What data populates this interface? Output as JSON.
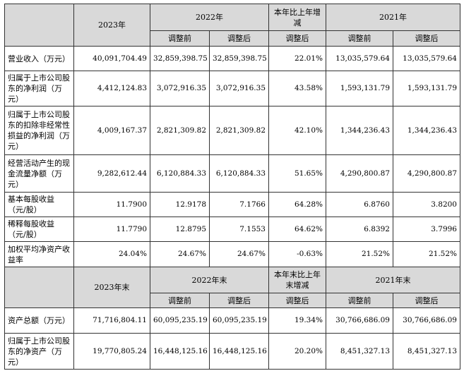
{
  "header1": {
    "col_2023": "2023年",
    "col_2022": "2022年",
    "col_change": "本年比上年增减",
    "col_2021": "2021年",
    "before": "调整前",
    "after": "调整后"
  },
  "rows1": [
    {
      "label": "营业收入（万元）",
      "v2023": "40,091,704.49",
      "v2022_before": "32,859,398.75",
      "v2022_after": "32,859,398.75",
      "change": "22.01%",
      "v2021_before": "13,035,579.64",
      "v2021_after": "13,035,579.64"
    },
    {
      "label": "归属于上市公司股东的净利润（万元）",
      "v2023": "4,412,124.83",
      "v2022_before": "3,072,916.35",
      "v2022_after": "3,072,916.35",
      "change": "43.58%",
      "v2021_before": "1,593,131.79",
      "v2021_after": "1,593,131.79"
    },
    {
      "label": "归属于上市公司股东的扣除非经常性损益的净利润（万元）",
      "v2023": "4,009,167.37",
      "v2022_before": "2,821,309.82",
      "v2022_after": "2,821,309.82",
      "change": "42.10%",
      "v2021_before": "1,344,236.43",
      "v2021_after": "1,344,236.43"
    },
    {
      "label": "经营活动产生的现金流量净额（万元）",
      "v2023": "9,282,612.44",
      "v2022_before": "6,120,884.33",
      "v2022_after": "6,120,884.33",
      "change": "51.65%",
      "v2021_before": "4,290,800.87",
      "v2021_after": "4,290,800.87"
    },
    {
      "label": "基本每股收益（元/股）",
      "v2023": "11.7900",
      "v2022_before": "12.9178",
      "v2022_after": "7.1766",
      "change": "64.28%",
      "v2021_before": "6.8760",
      "v2021_after": "3.8200"
    },
    {
      "label": "稀释每股收益（元/股）",
      "v2023": "11.7790",
      "v2022_before": "12.8795",
      "v2022_after": "7.1553",
      "change": "64.62%",
      "v2021_before": "6.8392",
      "v2021_after": "3.7996"
    },
    {
      "label": "加权平均净资产收益率",
      "v2023": "24.04%",
      "v2022_before": "24.67%",
      "v2022_after": "24.67%",
      "change": "-0.63%",
      "v2021_before": "21.52%",
      "v2021_after": "21.52%"
    }
  ],
  "header2": {
    "col_2023": "2023年末",
    "col_2022": "2022年末",
    "col_change": "本年末比上年末增减",
    "col_2021": "2021年末",
    "before": "调整前",
    "after": "调整后"
  },
  "rows2": [
    {
      "label": "资产总额（万元）",
      "v2023": "71,716,804.11",
      "v2022_before": "60,095,235.19",
      "v2022_after": "60,095,235.19",
      "change": "19.34%",
      "v2021_before": "30,766,686.09",
      "v2021_after": "30,766,686.09"
    },
    {
      "label": "归属于上市公司股东的净资产（万元）",
      "v2023": "19,770,805.24",
      "v2022_before": "16,448,125.16",
      "v2022_after": "16,448,125.16",
      "change": "20.20%",
      "v2021_before": "8,451,327.13",
      "v2021_after": "8,451,327.13"
    }
  ],
  "colors": {
    "header_fill": "#d9d9d9",
    "border": "#333333"
  }
}
